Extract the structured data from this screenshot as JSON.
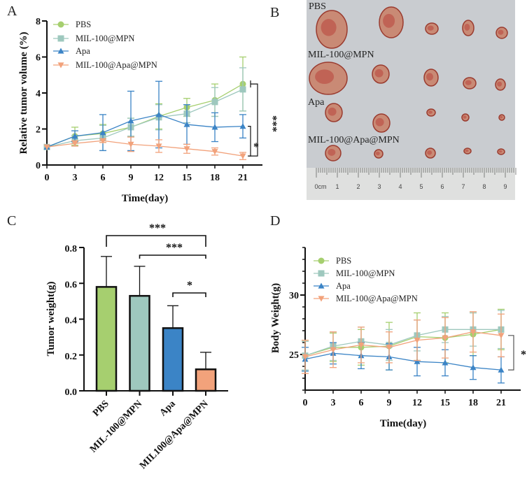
{
  "panels": {
    "a": "A",
    "b": "B",
    "c": "C",
    "d": "D"
  },
  "colors": {
    "PBS": "#a6cf6f",
    "MIL-100@MPN": "#9ec8be",
    "Apa": "#3b84c6",
    "MIL-100@Apa@MPN": "#f2a27b"
  },
  "photo": {
    "labels": [
      "PBS",
      "MIL-100@MPN",
      "Apa",
      "MIL-100@Apa@MPN"
    ],
    "ruler_labels": [
      "0cm",
      "1",
      "2",
      "3",
      "4",
      "5",
      "6",
      "7",
      "8",
      "9"
    ]
  },
  "chart_data": [
    {
      "panel": "A",
      "type": "line",
      "xlabel": "Time(day)",
      "ylabel": "Relative tumor volume (%)",
      "x": [
        0,
        3,
        6,
        9,
        12,
        15,
        18,
        21
      ],
      "xticks": [
        "0",
        "3",
        "6",
        "9",
        "12",
        "15",
        "18",
        "21"
      ],
      "yticks": [
        "0",
        "2",
        "4",
        "6",
        "8"
      ],
      "xlim": [
        0,
        21
      ],
      "ylim": [
        0,
        8
      ],
      "legend": "top-left",
      "series": [
        {
          "name": "PBS",
          "marker": "circle",
          "values": [
            1,
            1.6,
            1.75,
            2.1,
            2.7,
            3.2,
            3.6,
            4.5
          ],
          "error": [
            0,
            0.5,
            0.5,
            0.5,
            0.7,
            0.5,
            0.9,
            1.5
          ]
        },
        {
          "name": "MIL-100@MPN",
          "marker": "square",
          "values": [
            1,
            1.35,
            1.5,
            2.1,
            2.65,
            2.85,
            3.5,
            4.2
          ],
          "error": [
            0,
            0.3,
            0.7,
            0.5,
            0.7,
            0.5,
            0.8,
            1.2
          ]
        },
        {
          "name": "Apa",
          "marker": "triangle-up",
          "values": [
            1,
            1.6,
            1.8,
            2.45,
            2.8,
            2.25,
            2.1,
            2.15
          ],
          "error": [
            0,
            0.3,
            1.0,
            1.65,
            1.85,
            1.1,
            0.8,
            0.65
          ]
        },
        {
          "name": "MIL-100@Apa@MPN",
          "marker": "triangle-down",
          "values": [
            1,
            1.2,
            1.35,
            1.15,
            1.05,
            0.9,
            0.75,
            0.5
          ],
          "error": [
            0,
            0.15,
            0.1,
            0.4,
            0.35,
            0.25,
            0.2,
            0.2
          ]
        }
      ],
      "significance": [
        {
          "groups": [
            "PBS",
            "MIL-100@Apa@MPN"
          ],
          "label": "***"
        },
        {
          "groups": [
            "Apa",
            "MIL-100@Apa@MPN"
          ],
          "label": "*"
        }
      ]
    },
    {
      "panel": "C",
      "type": "bar",
      "ylabel": "Tumor weight(g)",
      "categories": [
        "PBS",
        "MIL-100@MPN",
        "Apa",
        "MIL100@Apa@MPN"
      ],
      "values": [
        0.58,
        0.53,
        0.35,
        0.12
      ],
      "error": [
        0.17,
        0.165,
        0.125,
        0.095
      ],
      "yticks": [
        "0.0",
        "0.2",
        "0.4",
        "0.6",
        "0.8"
      ],
      "ylim": [
        0,
        0.8
      ],
      "significance": [
        {
          "from": 0,
          "to": 3,
          "label": "***"
        },
        {
          "from": 1,
          "to": 3,
          "label": "***"
        },
        {
          "from": 2,
          "to": 3,
          "label": "*"
        }
      ]
    },
    {
      "panel": "D",
      "type": "line",
      "xlabel": "Time(day)",
      "ylabel": "Body Weight(g)",
      "x": [
        0,
        3,
        6,
        9,
        12,
        15,
        18,
        21
      ],
      "xticks": [
        "0",
        "3",
        "6",
        "9",
        "12",
        "15",
        "18",
        "21"
      ],
      "yticks": [
        "25",
        "30"
      ],
      "xlim": [
        0,
        21
      ],
      "ylim": [
        22,
        34
      ],
      "legend": "top-left",
      "series": [
        {
          "name": "PBS",
          "marker": "circle",
          "values": [
            24.9,
            25.6,
            25.6,
            25.7,
            26.5,
            26.4,
            26.7,
            27.1
          ],
          "error": [
            1.3,
            1.2,
            1.5,
            2.0,
            2.0,
            2.1,
            1.8,
            1.7
          ]
        },
        {
          "name": "MIL-100@MPN",
          "marker": "square",
          "values": [
            24.9,
            25.7,
            26.1,
            25.8,
            26.6,
            27.1,
            27.1,
            27.1
          ],
          "error": [
            1.2,
            1.2,
            1.2,
            1.3,
            1.3,
            1.1,
            1.4,
            1.6
          ]
        },
        {
          "name": "Apa",
          "marker": "triangle-up",
          "values": [
            24.6,
            25.1,
            24.9,
            24.8,
            24.4,
            24.3,
            23.9,
            23.7
          ],
          "error": [
            1.0,
            0.9,
            1.1,
            1.1,
            1.2,
            1.1,
            1.0,
            1.1
          ]
        },
        {
          "name": "MIL-100@Apa@MPN",
          "marker": "triangle-down",
          "values": [
            24.8,
            25.4,
            25.8,
            25.6,
            26.2,
            26.4,
            26.9,
            26.6
          ],
          "error": [
            1.4,
            1.5,
            1.5,
            1.3,
            1.7,
            1.7,
            1.7,
            1.8
          ]
        }
      ],
      "significance": [
        {
          "groups": [
            "MIL-100@Apa@MPN",
            "Apa"
          ],
          "label": "*"
        }
      ]
    }
  ]
}
